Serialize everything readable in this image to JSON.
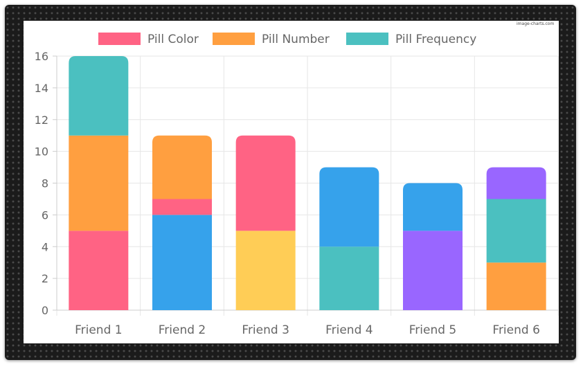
{
  "watermark": "image-charts.com",
  "chart_data": {
    "type": "bar",
    "stacked": true,
    "title": "",
    "xlabel": "",
    "ylabel": "",
    "ylim": [
      0,
      16
    ],
    "yticks": [
      0,
      2,
      4,
      6,
      8,
      10,
      12,
      14,
      16
    ],
    "grid": true,
    "legend_position": "top",
    "categories": [
      "Friend 1",
      "Friend 2",
      "Friend 3",
      "Friend 4",
      "Friend 5",
      "Friend 6"
    ],
    "legend": [
      {
        "name": "Pill Color",
        "color": "#FF6384"
      },
      {
        "name": "Pill Number",
        "color": "#FF9F40"
      },
      {
        "name": "Pill Frequency",
        "color": "#4BC0C0"
      }
    ],
    "stacks": [
      {
        "category": "Friend 1",
        "segments": [
          {
            "value": 5,
            "color": "#FF6384"
          },
          {
            "value": 6,
            "color": "#FF9F40"
          },
          {
            "value": 5,
            "color": "#4BC0C0"
          }
        ]
      },
      {
        "category": "Friend 2",
        "segments": [
          {
            "value": 6,
            "color": "#36A2EB"
          },
          {
            "value": 1,
            "color": "#FF6384"
          },
          {
            "value": 4,
            "color": "#FF9F40"
          }
        ]
      },
      {
        "category": "Friend 3",
        "segments": [
          {
            "value": 5,
            "color": "#FFCD56"
          },
          {
            "value": 6,
            "color": "#FF6384"
          }
        ]
      },
      {
        "category": "Friend 4",
        "segments": [
          {
            "value": 4,
            "color": "#4BC0C0"
          },
          {
            "value": 5,
            "color": "#36A2EB"
          }
        ]
      },
      {
        "category": "Friend 5",
        "segments": [
          {
            "value": 5,
            "color": "#9966FF"
          },
          {
            "value": 3,
            "color": "#36A2EB"
          }
        ]
      },
      {
        "category": "Friend 6",
        "segments": [
          {
            "value": 3,
            "color": "#FF9F40"
          },
          {
            "value": 4,
            "color": "#4BC0C0"
          },
          {
            "value": 2,
            "color": "#9966FF"
          }
        ]
      }
    ]
  }
}
